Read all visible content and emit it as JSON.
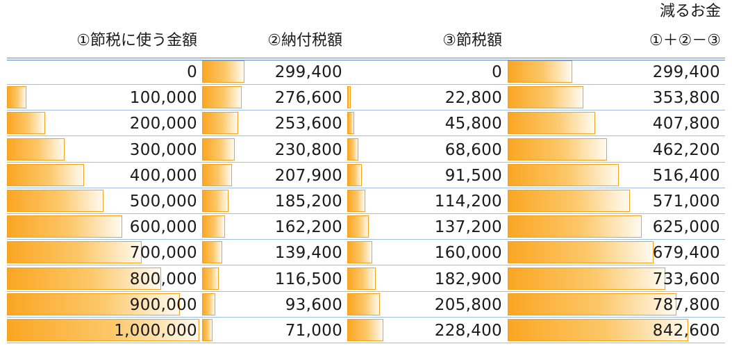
{
  "colors": {
    "bar_start": "#fba623",
    "bar_end": "#fffaf0",
    "bar_border": "#f4a21c",
    "rule": "#5a8ec6"
  },
  "chart_data": {
    "type": "table",
    "super_header": "減るお金",
    "columns": [
      "①節税に使う金額",
      "②納付税額",
      "③節税額",
      "①＋②－③"
    ],
    "rows": [
      [
        "0",
        "299,400",
        "0",
        "299,400"
      ],
      [
        "100,000",
        "276,600",
        "22,800",
        "353,800"
      ],
      [
        "200,000",
        "253,600",
        "45,800",
        "407,800"
      ],
      [
        "300,000",
        "230,800",
        "68,600",
        "462,200"
      ],
      [
        "400,000",
        "207,900",
        "91,500",
        "516,400"
      ],
      [
        "500,000",
        "185,200",
        "114,200",
        "571,000"
      ],
      [
        "600,000",
        "162,200",
        "137,200",
        "625,000"
      ],
      [
        "700,000",
        "139,400",
        "160,000",
        "679,400"
      ],
      [
        "800,000",
        "116,500",
        "182,900",
        "733,600"
      ],
      [
        "900,000",
        "93,600",
        "205,800",
        "787,800"
      ],
      [
        "1,000,000",
        "71,000",
        "228,400",
        "842,600"
      ]
    ],
    "series": [
      {
        "values": [
          0,
          100000,
          200000,
          300000,
          400000,
          500000,
          600000,
          700000,
          800000,
          900000,
          1000000
        ]
      },
      {
        "values": [
          299400,
          276600,
          253600,
          230800,
          207900,
          185200,
          162200,
          139400,
          116500,
          93600,
          71000
        ]
      },
      {
        "values": [
          0,
          22800,
          45800,
          68600,
          91500,
          114200,
          137200,
          160000,
          182900,
          205800,
          228400
        ]
      },
      {
        "values": [
          299400,
          353800,
          407800,
          462200,
          516400,
          571000,
          625000,
          679400,
          733600,
          787800,
          842600
        ]
      }
    ]
  }
}
